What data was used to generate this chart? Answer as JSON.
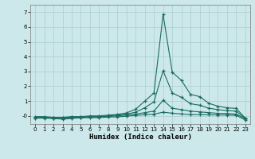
{
  "title": "",
  "xlabel": "Humidex (Indice chaleur)",
  "background_color": "#cce8ea",
  "grid_color": "#aacdd0",
  "line_color": "#1a6b60",
  "xlim": [
    -0.5,
    23.5
  ],
  "ylim": [
    -0.55,
    7.5
  ],
  "x": [
    0,
    1,
    2,
    3,
    4,
    5,
    6,
    7,
    8,
    9,
    10,
    11,
    12,
    13,
    14,
    15,
    16,
    17,
    18,
    19,
    20,
    21,
    22,
    23
  ],
  "line1": [
    -0.05,
    -0.05,
    -0.1,
    -0.1,
    -0.05,
    -0.05,
    0.0,
    0.0,
    0.05,
    0.1,
    0.2,
    0.45,
    1.0,
    1.55,
    6.85,
    2.95,
    2.4,
    1.45,
    1.3,
    0.85,
    0.65,
    0.55,
    0.5,
    -0.15
  ],
  "line2": [
    -0.1,
    -0.1,
    -0.12,
    -0.12,
    -0.08,
    -0.08,
    -0.05,
    -0.05,
    0.0,
    0.05,
    0.12,
    0.25,
    0.55,
    0.95,
    3.05,
    1.55,
    1.25,
    0.82,
    0.72,
    0.52,
    0.42,
    0.36,
    0.32,
    -0.18
  ],
  "line3": [
    -0.12,
    -0.12,
    -0.15,
    -0.18,
    -0.13,
    -0.1,
    -0.07,
    -0.07,
    -0.03,
    0.0,
    0.06,
    0.12,
    0.22,
    0.32,
    1.05,
    0.52,
    0.42,
    0.32,
    0.27,
    0.22,
    0.17,
    0.16,
    0.12,
    -0.2
  ],
  "line4": [
    -0.15,
    -0.15,
    -0.18,
    -0.22,
    -0.17,
    -0.13,
    -0.12,
    -0.12,
    -0.08,
    -0.07,
    -0.02,
    0.03,
    0.08,
    0.12,
    0.25,
    0.18,
    0.13,
    0.09,
    0.09,
    0.07,
    0.06,
    0.05,
    0.04,
    -0.28
  ],
  "yticks": [
    0,
    1,
    2,
    3,
    4,
    5,
    6,
    7
  ],
  "xticks": [
    0,
    1,
    2,
    3,
    4,
    5,
    6,
    7,
    8,
    9,
    10,
    11,
    12,
    13,
    14,
    15,
    16,
    17,
    18,
    19,
    20,
    21,
    22,
    23
  ]
}
